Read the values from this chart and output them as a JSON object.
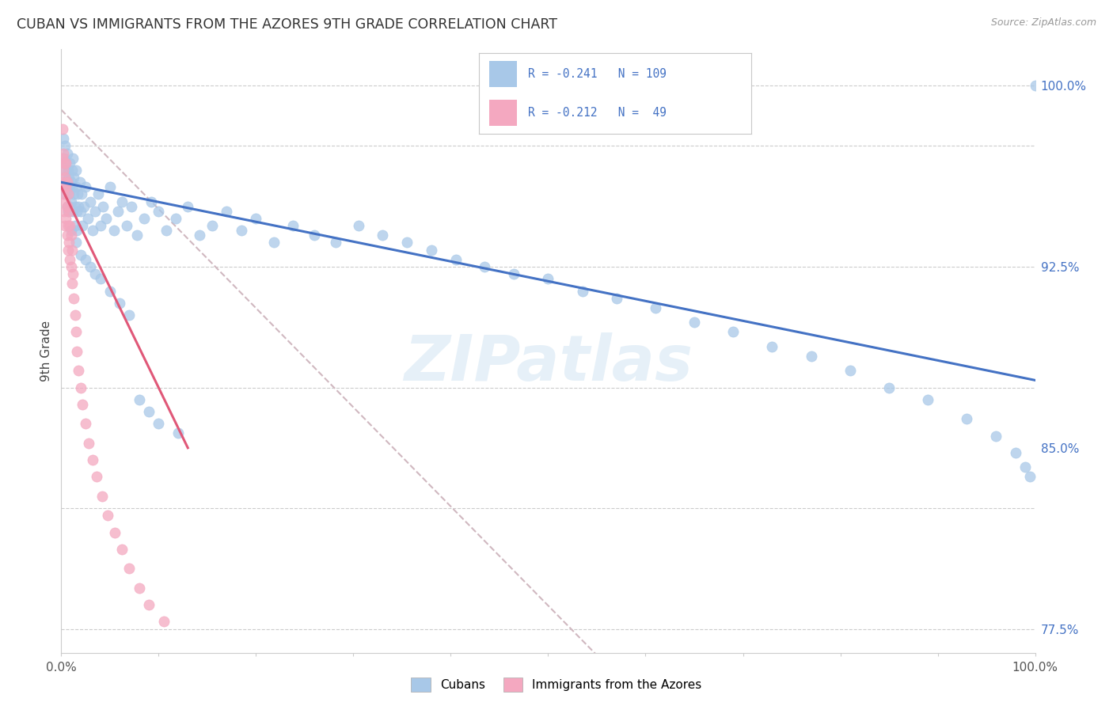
{
  "title": "CUBAN VS IMMIGRANTS FROM THE AZORES 9TH GRADE CORRELATION CHART",
  "source": "Source: ZipAtlas.com",
  "ylabel": "9th Grade",
  "watermark": "ZIPatlas",
  "blue_color": "#a8c8e8",
  "pink_color": "#f4a8c0",
  "blue_line_color": "#4472c4",
  "pink_line_color": "#e05878",
  "dashed_line_color": "#d0b8c0",
  "background_color": "#ffffff",
  "xlim": [
    0.0,
    1.0
  ],
  "ylim": [
    0.765,
    1.015
  ],
  "y_ticks": [
    0.775,
    0.85,
    0.925,
    1.0
  ],
  "y_tick_labels": [
    "77.5%",
    "85.0%",
    "92.5%",
    "100.0%"
  ],
  "y_grid_lines": [
    0.775,
    0.825,
    0.875,
    0.925,
    0.975,
    1.0
  ],
  "blue_trend": [
    0.0,
    0.96,
    1.0,
    0.878
  ],
  "pink_trend": [
    0.0,
    0.958,
    0.13,
    0.85
  ],
  "dashed_trend": [
    0.0,
    0.99,
    0.56,
    0.76
  ],
  "blue_pts_x": [
    0.002,
    0.003,
    0.003,
    0.004,
    0.004,
    0.005,
    0.005,
    0.005,
    0.006,
    0.006,
    0.006,
    0.007,
    0.007,
    0.007,
    0.008,
    0.008,
    0.009,
    0.009,
    0.009,
    0.01,
    0.01,
    0.01,
    0.011,
    0.011,
    0.012,
    0.012,
    0.013,
    0.013,
    0.014,
    0.014,
    0.015,
    0.015,
    0.016,
    0.016,
    0.017,
    0.018,
    0.019,
    0.02,
    0.021,
    0.022,
    0.023,
    0.025,
    0.027,
    0.03,
    0.032,
    0.035,
    0.038,
    0.04,
    0.043,
    0.046,
    0.05,
    0.054,
    0.058,
    0.062,
    0.067,
    0.072,
    0.078,
    0.085,
    0.092,
    0.1,
    0.108,
    0.118,
    0.13,
    0.142,
    0.155,
    0.17,
    0.185,
    0.2,
    0.218,
    0.238,
    0.26,
    0.282,
    0.305,
    0.33,
    0.355,
    0.38,
    0.405,
    0.435,
    0.465,
    0.5,
    0.535,
    0.57,
    0.61,
    0.65,
    0.69,
    0.73,
    0.77,
    0.81,
    0.85,
    0.89,
    0.93,
    0.96,
    0.98,
    0.99,
    0.995,
    1.0,
    0.015,
    0.02,
    0.025,
    0.03,
    0.035,
    0.04,
    0.05,
    0.06,
    0.07,
    0.08,
    0.09,
    0.1,
    0.12
  ],
  "blue_pts_y": [
    0.978,
    0.962,
    0.97,
    0.958,
    0.975,
    0.965,
    0.955,
    0.968,
    0.972,
    0.95,
    0.96,
    0.958,
    0.948,
    0.965,
    0.955,
    0.962,
    0.95,
    0.968,
    0.958,
    0.96,
    0.952,
    0.94,
    0.965,
    0.958,
    0.97,
    0.948,
    0.955,
    0.962,
    0.95,
    0.942,
    0.958,
    0.965,
    0.948,
    0.94,
    0.955,
    0.95,
    0.96,
    0.948,
    0.955,
    0.942,
    0.95,
    0.958,
    0.945,
    0.952,
    0.94,
    0.948,
    0.955,
    0.942,
    0.95,
    0.945,
    0.958,
    0.94,
    0.948,
    0.952,
    0.942,
    0.95,
    0.938,
    0.945,
    0.952,
    0.948,
    0.94,
    0.945,
    0.95,
    0.938,
    0.942,
    0.948,
    0.94,
    0.945,
    0.935,
    0.942,
    0.938,
    0.935,
    0.942,
    0.938,
    0.935,
    0.932,
    0.928,
    0.925,
    0.922,
    0.92,
    0.915,
    0.912,
    0.908,
    0.902,
    0.898,
    0.892,
    0.888,
    0.882,
    0.875,
    0.87,
    0.862,
    0.855,
    0.848,
    0.842,
    0.838,
    1.0,
    0.935,
    0.93,
    0.928,
    0.925,
    0.922,
    0.92,
    0.915,
    0.91,
    0.905,
    0.87,
    0.865,
    0.86,
    0.856
  ],
  "pink_pts_x": [
    0.001,
    0.001,
    0.001,
    0.002,
    0.002,
    0.002,
    0.003,
    0.003,
    0.003,
    0.004,
    0.004,
    0.004,
    0.005,
    0.005,
    0.005,
    0.006,
    0.006,
    0.006,
    0.007,
    0.007,
    0.007,
    0.008,
    0.008,
    0.009,
    0.009,
    0.01,
    0.01,
    0.011,
    0.011,
    0.012,
    0.013,
    0.014,
    0.015,
    0.016,
    0.018,
    0.02,
    0.022,
    0.025,
    0.028,
    0.032,
    0.036,
    0.042,
    0.048,
    0.055,
    0.062,
    0.07,
    0.08,
    0.09,
    0.105
  ],
  "pink_pts_y": [
    0.97,
    0.96,
    0.982,
    0.965,
    0.955,
    0.972,
    0.968,
    0.958,
    0.948,
    0.962,
    0.952,
    0.942,
    0.958,
    0.968,
    0.945,
    0.938,
    0.95,
    0.96,
    0.942,
    0.955,
    0.932,
    0.948,
    0.935,
    0.942,
    0.928,
    0.938,
    0.925,
    0.932,
    0.918,
    0.922,
    0.912,
    0.905,
    0.898,
    0.89,
    0.882,
    0.875,
    0.868,
    0.86,
    0.852,
    0.845,
    0.838,
    0.83,
    0.822,
    0.815,
    0.808,
    0.8,
    0.792,
    0.785,
    0.778
  ]
}
